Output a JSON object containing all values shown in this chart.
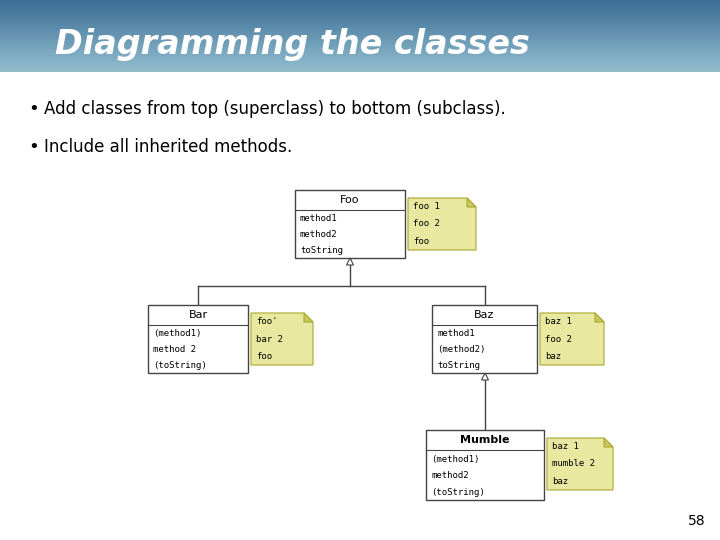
{
  "title": "Diagramming the classes",
  "title_color": "#ffffff",
  "bullet1": "Add classes from top (superclass) to bottom (subclass).",
  "bullet2": "Include all inherited methods.",
  "slide_bg": "#ffffff",
  "page_num": "58",
  "sticky_color": "#e8e8a0",
  "sticky_fold_color": "#c8c860",
  "sticky_border": "#aaa830",
  "foo_name": "Foo",
  "foo_methods": [
    "method1",
    "method2",
    "toString"
  ],
  "foo_note": [
    "foo 1",
    "foo 2",
    "foo"
  ],
  "bar_name": "Bar",
  "bar_methods": [
    "(method1)",
    "method 2",
    "(toString)"
  ],
  "bar_note": [
    "foo'",
    "bar 2",
    "foo"
  ],
  "baz_name": "Baz",
  "baz_methods": [
    "method1",
    "(method2)",
    "toString"
  ],
  "baz_note": [
    "baz 1",
    "foo 2",
    "baz"
  ],
  "mumble_name": "Mumble",
  "mumble_methods": [
    "(method1)",
    "method2",
    "(toString)"
  ],
  "mumble_note": [
    "baz 1",
    "mumble 2",
    "baz"
  ],
  "title_grad_top": "#3a6e96",
  "title_grad_mid": "#5b90b8",
  "title_grad_bot": "#90c0d8"
}
